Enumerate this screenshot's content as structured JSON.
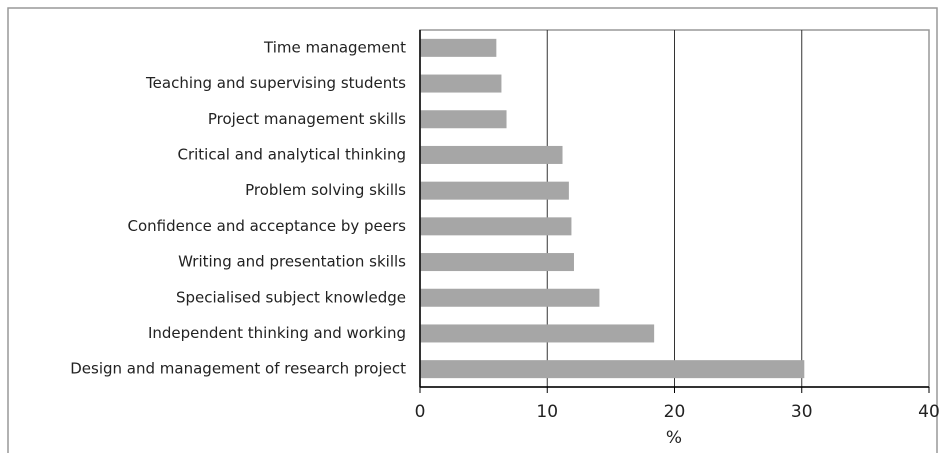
{
  "chart_data": {
    "type": "bar",
    "orientation": "horizontal",
    "categories": [
      "Time management",
      "Teaching and supervising students",
      "Project management skills",
      "Critical and analytical thinking",
      "Problem solving skills",
      "Confidence and acceptance by peers",
      "Writing and presentation skills",
      "Specialised subject knowledge",
      "Independent thinking and working",
      "Design and management of research project"
    ],
    "values": [
      6.0,
      6.4,
      6.8,
      11.2,
      11.7,
      11.9,
      12.1,
      14.1,
      18.4,
      30.2
    ],
    "color": "#a6a6a6",
    "xlim": [
      0,
      40
    ],
    "xticks": [
      0,
      10,
      20,
      30,
      40
    ],
    "xlabel": "%",
    "grid": true
  }
}
